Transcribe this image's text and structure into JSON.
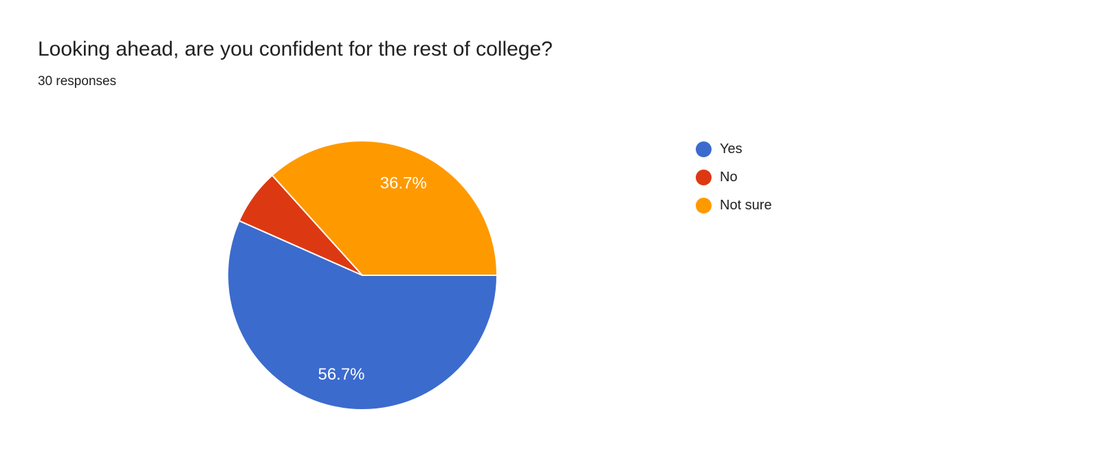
{
  "chart_data": {
    "type": "pie",
    "title": "Looking ahead, are you confident for the rest of college?",
    "subtitle": "30 responses",
    "categories": [
      "Yes",
      "No",
      "Not sure"
    ],
    "values": [
      56.7,
      6.7,
      36.7
    ],
    "unit": "%",
    "colors": [
      "#3c6bce",
      "#dc3912",
      "#ff9900"
    ],
    "slice_labels": [
      "56.7%",
      "",
      "36.7%"
    ],
    "legend_position": "right",
    "start_angle_deg": 0,
    "direction": "clockwise",
    "slice_stroke_color": "#ffffff",
    "label_text_color": "#ffffff",
    "title_color": "#212121",
    "background_color": "#ffffff"
  }
}
